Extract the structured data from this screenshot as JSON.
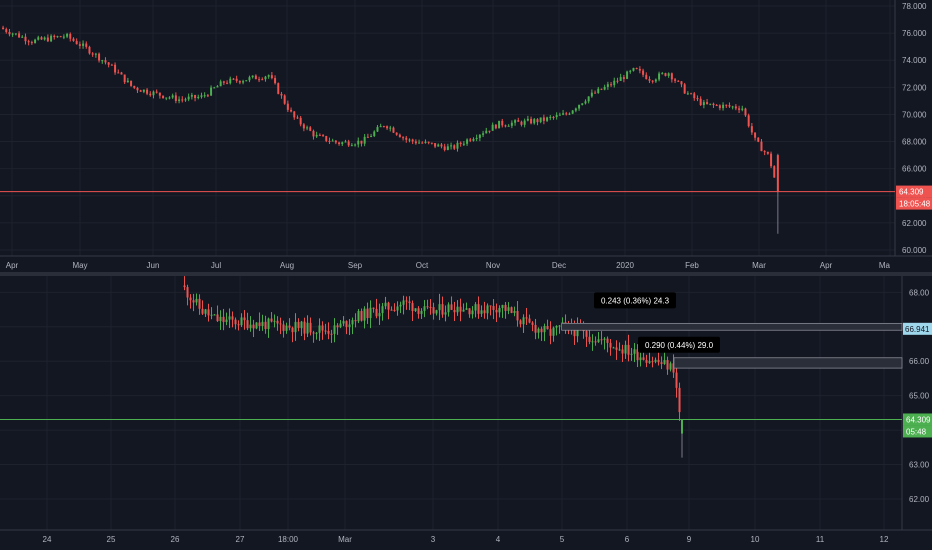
{
  "colors": {
    "background": "#131722",
    "up": "#26a69a",
    "up_body": "#4caf50",
    "down": "#ef5350",
    "grid": "#1e222d",
    "axis_text": "#b2b5be",
    "top_last_line": "#ef5350",
    "bottom_last_line": "#4caf50",
    "cyan_tag": "#9fd8ec"
  },
  "chart_data": [
    {
      "type": "candlestick",
      "name": "top-daily",
      "x_ticks": [
        "Apr",
        "May",
        "Jun",
        "Jul",
        "Aug",
        "Sep",
        "Oct",
        "Nov",
        "Dec",
        "2020",
        "Feb",
        "Mar",
        "Apr",
        "Ma"
      ],
      "y_ticks": [
        "78.000",
        "76.000",
        "74.000",
        "72.000",
        "70.000",
        "68.000",
        "66.000",
        "64.000",
        "62.000",
        "60.000"
      ],
      "ylim": [
        60,
        78
      ],
      "last_price": "64.309",
      "countdown": "18:05:48",
      "close_trend": [
        {
          "x": "2019-03-28",
          "y": 76.3
        },
        {
          "x": "2019-04-10",
          "y": 75.4
        },
        {
          "x": "2019-04-25",
          "y": 75.8
        },
        {
          "x": "2019-05-05",
          "y": 74.8
        },
        {
          "x": "2019-05-15",
          "y": 73.6
        },
        {
          "x": "2019-05-25",
          "y": 72.0
        },
        {
          "x": "2019-06-05",
          "y": 71.5
        },
        {
          "x": "2019-06-15",
          "y": 71.1
        },
        {
          "x": "2019-06-25",
          "y": 71.3
        },
        {
          "x": "2019-07-05",
          "y": 72.4
        },
        {
          "x": "2019-07-15",
          "y": 72.6
        },
        {
          "x": "2019-07-25",
          "y": 72.9
        },
        {
          "x": "2019-08-05",
          "y": 69.8
        },
        {
          "x": "2019-08-15",
          "y": 68.4
        },
        {
          "x": "2019-08-25",
          "y": 67.9
        },
        {
          "x": "2019-09-05",
          "y": 68.0
        },
        {
          "x": "2019-09-15",
          "y": 69.3
        },
        {
          "x": "2019-09-25",
          "y": 68.1
        },
        {
          "x": "2019-10-05",
          "y": 67.8
        },
        {
          "x": "2019-10-15",
          "y": 67.5
        },
        {
          "x": "2019-10-25",
          "y": 68.4
        },
        {
          "x": "2019-11-05",
          "y": 69.3
        },
        {
          "x": "2019-11-15",
          "y": 69.4
        },
        {
          "x": "2019-11-25",
          "y": 69.6
        },
        {
          "x": "2019-12-05",
          "y": 70.0
        },
        {
          "x": "2019-12-15",
          "y": 71.3
        },
        {
          "x": "2019-12-25",
          "y": 72.2
        },
        {
          "x": "2020-01-05",
          "y": 73.3
        },
        {
          "x": "2020-01-12",
          "y": 72.6
        },
        {
          "x": "2020-01-20",
          "y": 73.1
        },
        {
          "x": "2020-01-28",
          "y": 71.6
        },
        {
          "x": "2020-02-05",
          "y": 70.7
        },
        {
          "x": "2020-02-15",
          "y": 70.6
        },
        {
          "x": "2020-02-22",
          "y": 70.5
        },
        {
          "x": "2020-02-28",
          "y": 68.0
        },
        {
          "x": "2020-03-05",
          "y": 66.9
        },
        {
          "x": "2020-03-09",
          "y": 64.3
        }
      ],
      "last_candle": {
        "open": 67.0,
        "high": 67.1,
        "low": 61.2,
        "close": 64.3
      }
    },
    {
      "type": "candlestick",
      "name": "bottom-intraday",
      "x_ticks": [
        "24",
        "25",
        "26",
        "27",
        "18:00",
        "Mar",
        "3",
        "4",
        "5",
        "6",
        "9",
        "10",
        "11",
        "12"
      ],
      "y_ticks": [
        "68.00",
        "67.00",
        "66.00",
        "65.00",
        "64.00",
        "63.00",
        "62.00"
      ],
      "ylim": [
        61.1,
        68.3
      ],
      "last_price": "64.309",
      "countdown": "05:48",
      "price_tag": "66.941",
      "close_trend": [
        {
          "x": "2020-02-27 16:00",
          "y": 68.1
        },
        {
          "x": "2020-02-28 00:00",
          "y": 67.5
        },
        {
          "x": "2020-02-28 08:00",
          "y": 67.2
        },
        {
          "x": "2020-03-01 18:00",
          "y": 66.9
        },
        {
          "x": "2020-03-02 06:00",
          "y": 67.3
        },
        {
          "x": "2020-03-02 18:00",
          "y": 67.5
        },
        {
          "x": "2020-03-03 06:00",
          "y": 67.7
        },
        {
          "x": "2020-03-03 18:00",
          "y": 67.4
        },
        {
          "x": "2020-03-04 06:00",
          "y": 67.6
        },
        {
          "x": "2020-03-04 18:00",
          "y": 67.5
        },
        {
          "x": "2020-03-05 06:00",
          "y": 67.6
        },
        {
          "x": "2020-03-05 18:00",
          "y": 67.1
        },
        {
          "x": "2020-03-06 06:00",
          "y": 66.8
        },
        {
          "x": "2020-03-06 12:00",
          "y": 67.0
        },
        {
          "x": "2020-03-06 18:00",
          "y": 66.9
        },
        {
          "x": "2020-03-08 20:00",
          "y": 65.8
        },
        {
          "x": "2020-03-09 00:00",
          "y": 63.9
        }
      ],
      "last_candle": {
        "open": 63.9,
        "high": 64.3,
        "low": 63.2,
        "close": 64.3
      },
      "gap_boxes": [
        {
          "from": "2020-03-06 12:00",
          "top": 67.1,
          "bottom": 66.9,
          "label": "0.243 (0.36%) 24.3"
        },
        {
          "from": "2020-03-08 20:00",
          "top": 66.1,
          "bottom": 65.8,
          "label": "0.290 (0.44%) 29.0"
        }
      ]
    }
  ]
}
